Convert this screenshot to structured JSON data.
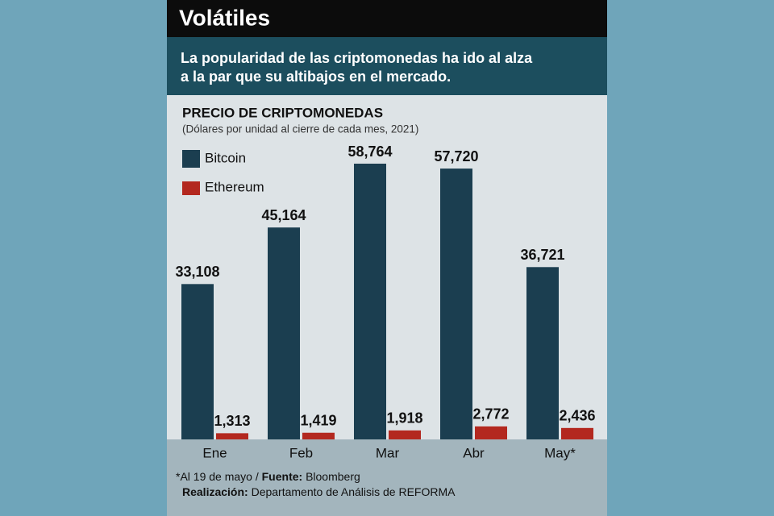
{
  "chart_data": {
    "type": "bar",
    "headline": "Volátiles",
    "subtitle": [
      "La popularidad de las criptomonedas ha ido al alza",
      "a la par que su altibajos en el mercado."
    ],
    "title": "PRECIO DE CRIPTOMONEDAS",
    "units_note": "(Dólares por unidad al cierre de cada mes, 2021)",
    "categories": [
      "Ene",
      "Feb",
      "Mar",
      "Abr",
      "May*"
    ],
    "series": [
      {
        "name": "Bitcoin",
        "color": "#1b3e50",
        "values": [
          33108,
          45164,
          58764,
          57720,
          36721
        ],
        "value_labels": [
          "33,108",
          "45,164",
          "58,764",
          "57,720",
          "36,721"
        ]
      },
      {
        "name": "Ethereum",
        "color": "#b3281f",
        "values": [
          1313,
          1419,
          1918,
          2772,
          2436
        ],
        "value_labels": [
          "1,313",
          "1,419",
          "1,918",
          "2,772",
          "2,436"
        ]
      }
    ],
    "footnote": {
      "note": "*Al 19 de mayo / ",
      "source_label": "Fuente:",
      "source": " Bloomberg",
      "credit_label": "Realización:",
      "credit": " Departamento de Análisis de REFORMA"
    }
  }
}
